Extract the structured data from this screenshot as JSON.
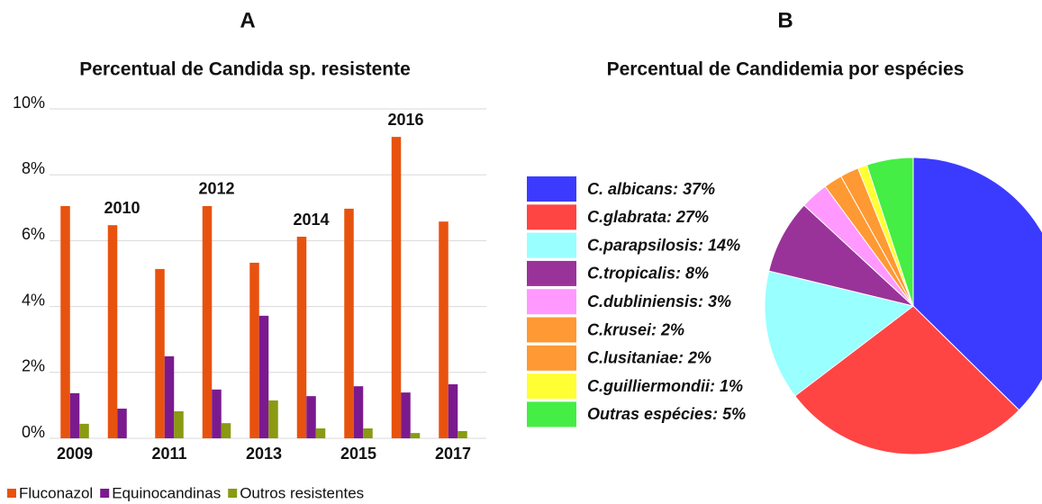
{
  "chart_data": [
    {
      "type": "bar",
      "panel": "A",
      "title": "Percentual de Candida sp. resistente",
      "categories": [
        "2009",
        "2010",
        "2011",
        "2012",
        "2013",
        "2014",
        "2015",
        "2016",
        "2017"
      ],
      "series": [
        {
          "name": "Fluconazol",
          "color": "#e8520f",
          "values": [
            7.05,
            6.47,
            5.14,
            7.05,
            5.33,
            6.12,
            6.97,
            9.15,
            6.58
          ]
        },
        {
          "name": "Equinocandinas",
          "color": "#7b1a8e",
          "values": [
            1.37,
            0.9,
            2.49,
            1.48,
            3.72,
            1.28,
            1.58,
            1.39,
            1.64
          ]
        },
        {
          "name": "Outros resistentes",
          "color": "#8a9a12",
          "values": [
            0.44,
            0,
            0.82,
            0.46,
            1.15,
            0.3,
            0.3,
            0.16,
            0.22
          ]
        }
      ],
      "ylim": [
        0,
        10
      ],
      "yticks": [
        {
          "value": 0,
          "label": "0%"
        },
        {
          "value": 2,
          "label": "2%"
        },
        {
          "value": 4,
          "label": "4%"
        },
        {
          "value": 6,
          "label": "6%"
        },
        {
          "value": 8,
          "label": "8%"
        },
        {
          "value": 10,
          "label": "10%"
        }
      ],
      "grid": true,
      "legend": "bottom"
    },
    {
      "type": "pie",
      "panel": "B",
      "title": "Percentual de Candidemia por espécies",
      "categories": [
        "C. albicans: 37%",
        "C.glabrata: 27%",
        "C.parapsilosis: 14%",
        "C.tropicalis: 8%",
        "C.dubliniensis: 3%",
        "C.krusei: 2%",
        "C.lusitaniae: 2%",
        "C.guilliermondii: 1%",
        "Outras espécies: 5%"
      ],
      "values": [
        37,
        27,
        14,
        8,
        3,
        2,
        2,
        1,
        5
      ],
      "colors": [
        "#3b3bff",
        "#ff4444",
        "#99ffff",
        "#993399",
        "#ff99ff",
        "#ff9933",
        "#ff9933",
        "#ffff33",
        "#44ee44"
      ],
      "legend": "left"
    }
  ]
}
